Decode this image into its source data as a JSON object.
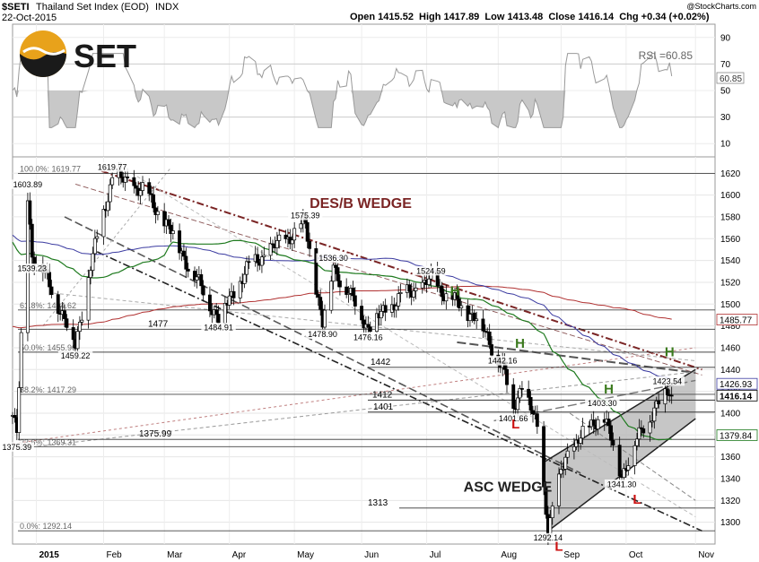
{
  "header": {
    "symbol": "$SETI",
    "name": "Thailand Set Index (EOD)",
    "exchange": "INDX",
    "date": "22-Oct-2015",
    "ohlc": "Open 1415.52  High 1417.89  Low 1413.48  Close 1416.14  Chg +0.34 (+0.02%)",
    "credit": "@StockCharts.com"
  },
  "logo": {
    "text": "SET"
  },
  "rsi": {
    "label": "RSI =60.85",
    "value_badge": "60.85",
    "ticks": [
      "90",
      "70",
      "50",
      "30",
      "10"
    ],
    "tick_values": [
      90,
      70,
      50,
      30,
      10
    ],
    "range": [
      0,
      100
    ]
  },
  "colors": {
    "desb_wedge": "#7a2424",
    "asc_wedge": "#222222",
    "hl_green": "#3b7a1e",
    "hl_red": "#cc1111",
    "ma50": "#1e7a1e",
    "ma100": "#3a3aa0",
    "ma200": "#b03030"
  },
  "chart_data": {
    "type": "candlestick",
    "ylim": [
      1280,
      1635
    ],
    "yticks": [
      1300,
      1320,
      1340,
      1360,
      1380,
      1400,
      1420,
      1440,
      1460,
      1480,
      1500,
      1520,
      1540,
      1560,
      1580,
      1600,
      1620
    ],
    "xtick_labels": [
      "2015",
      "Feb",
      "Mar",
      "Apr",
      "May",
      "Jun",
      "Jul",
      "Aug",
      "Sep",
      "Oct",
      "Nov"
    ],
    "xtick_dates": [
      "2015-01-02",
      "2015-02-02",
      "2015-03-02",
      "2015-04-01",
      "2015-05-01",
      "2015-06-01",
      "2015-07-01",
      "2015-08-03",
      "2015-09-01",
      "2015-10-01",
      "2015-11-02"
    ],
    "price_annotations": [
      {
        "text": "1603.89",
        "date": "2014-12-29",
        "price": 1603.89
      },
      {
        "text": "1619.77",
        "date": "2015-02-06",
        "price": 1619.77
      },
      {
        "text": "1575.39",
        "date": "2015-05-06",
        "price": 1575.39
      },
      {
        "text": "1539.23",
        "date": "2014-12-31",
        "price": 1539.23
      },
      {
        "text": "1536.30",
        "date": "2015-05-19",
        "price": 1536.3
      },
      {
        "text": "1524.59",
        "date": "2015-07-03",
        "price": 1524.59
      },
      {
        "text": "1484.91",
        "date": "2015-03-27",
        "price": 1484.91
      },
      {
        "text": "1478.90",
        "date": "2015-05-14",
        "price": 1478.9
      },
      {
        "text": "1476.16",
        "date": "2015-06-04",
        "price": 1476.16
      },
      {
        "text": "1459.22",
        "date": "2015-01-20",
        "price": 1459.22
      },
      {
        "text": "1442.16",
        "date": "2015-08-05",
        "price": 1442.16
      },
      {
        "text": "1423.54",
        "date": "2015-10-20",
        "price": 1423.54
      },
      {
        "text": "1403.30",
        "date": "2015-09-20",
        "price": 1403.3
      },
      {
        "text": "1401.66",
        "date": "2015-08-10",
        "price": 1401.66
      },
      {
        "text": "1375.39",
        "date": "2014-12-24",
        "price": 1375.39
      },
      {
        "text": "1341.30",
        "date": "2015-09-29",
        "price": 1341.3
      },
      {
        "text": "1292.14",
        "date": "2015-08-26",
        "price": 1292.14
      }
    ],
    "fib_levels": [
      {
        "text": "100.0%: 1619.77",
        "price": 1619.77
      },
      {
        "text": "61.8%: 1494.62",
        "price": 1494.62
      },
      {
        "text": "50.0%: 1455.96",
        "price": 1455.96
      },
      {
        "text": "38.2%: 1417.29",
        "price": 1417.29
      },
      {
        "text": "23.6%: 1369.31",
        "price": 1369.31
      },
      {
        "text": "0.0%: 1292.14",
        "price": 1292.14
      }
    ],
    "horizontal_levels": [
      {
        "text": "1477",
        "price": 1477
      },
      {
        "text": "1442",
        "price": 1442
      },
      {
        "text": "1412",
        "price": 1412
      },
      {
        "text": "1401",
        "price": 1401
      },
      {
        "text": "1375.99",
        "price": 1375.99
      },
      {
        "text": "1313",
        "price": 1313
      }
    ],
    "right_badges": [
      {
        "text": "1485.77",
        "price": 1485.77,
        "color": "#b03030"
      },
      {
        "text": "1426.93",
        "price": 1426.93,
        "color": "#3a3aa0"
      },
      {
        "text": "1416.14",
        "price": 1416.14,
        "color": "#000000"
      },
      {
        "text": "1379.84",
        "price": 1379.84,
        "color": "#1e7a1e"
      }
    ],
    "annotations": [
      {
        "text": "DES/B WEDGE",
        "date": "2015-05-08",
        "price": 1588,
        "color": "#7a2424"
      },
      {
        "text": "ASC WEDGE",
        "date": "2015-07-18",
        "price": 1328,
        "color": "#222222"
      }
    ],
    "hl_marks": [
      {
        "text": "H",
        "date": "2015-07-14",
        "price": 1508,
        "color": "#3b7a1e"
      },
      {
        "text": "H",
        "date": "2015-08-13",
        "price": 1460,
        "color": "#3b7a1e"
      },
      {
        "text": "H",
        "date": "2015-09-23",
        "price": 1418,
        "color": "#3b7a1e"
      },
      {
        "text": "H",
        "date": "2015-10-21",
        "price": 1452,
        "color": "#3b7a1e"
      },
      {
        "text": "L",
        "date": "2015-08-11",
        "price": 1386,
        "color": "#cc1111"
      },
      {
        "text": "L",
        "date": "2015-08-31",
        "price": 1274,
        "color": "#cc1111"
      },
      {
        "text": "L",
        "date": "2015-10-06",
        "price": 1317,
        "color": "#cc1111"
      }
    ]
  }
}
